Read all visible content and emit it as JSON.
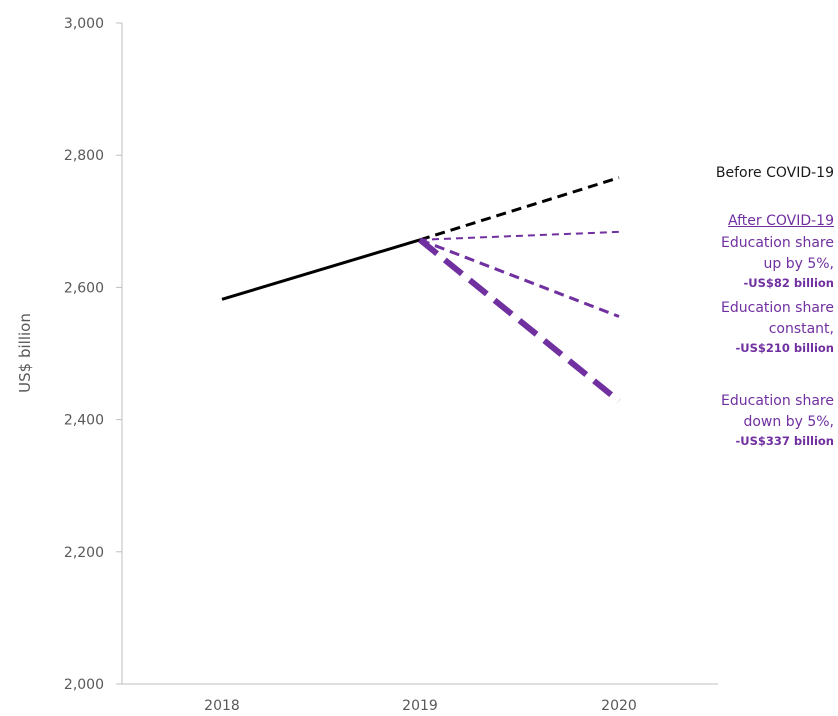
{
  "chart_data": {
    "type": "line",
    "title": "",
    "xlabel": "",
    "ylabel": "US$ billion",
    "categories": [
      "2018",
      "2019",
      "2020"
    ],
    "ylim": [
      2000,
      3000
    ],
    "yticks": [
      "2,000",
      "2,200",
      "2,400",
      "2,600",
      "2,800",
      "3,000"
    ],
    "grid": false,
    "series": [
      {
        "name": "Before COVID-19 (actual)",
        "x": [
          "2018",
          "2019"
        ],
        "values": [
          2582,
          2672
        ],
        "color": "#000000",
        "style": "solid",
        "width": 3
      },
      {
        "name": "Before COVID-19",
        "x": [
          "2019",
          "2020"
        ],
        "values": [
          2672,
          2766
        ],
        "color": "#000000",
        "style": "dashed",
        "width": 3
      },
      {
        "name": "Education share up by 5%",
        "x": [
          "2019",
          "2020"
        ],
        "values": [
          2672,
          2684
        ],
        "color": "#7030a0",
        "style": "dashed",
        "width": 2
      },
      {
        "name": "Education share constant",
        "x": [
          "2019",
          "2020"
        ],
        "values": [
          2672,
          2556
        ],
        "color": "#7030a0",
        "style": "dashed",
        "width": 3
      },
      {
        "name": "Education share down by 5%",
        "x": [
          "2019",
          "2020"
        ],
        "values": [
          2672,
          2428
        ],
        "color": "#7030a0",
        "style": "dashed",
        "width": 6
      }
    ]
  },
  "annotations": {
    "before": "Before COVID-19",
    "after_header": "After COVID-19",
    "up_line1": "Education share",
    "up_line2": "up by 5%,",
    "up_amount": "-US$82 billion",
    "constant_line1": "Education share",
    "constant_line2": "constant,",
    "constant_amount": "-US$210 billion",
    "down_line1": "Education share",
    "down_line2": "down by 5%,",
    "down_amount": "-US$337 billion"
  }
}
